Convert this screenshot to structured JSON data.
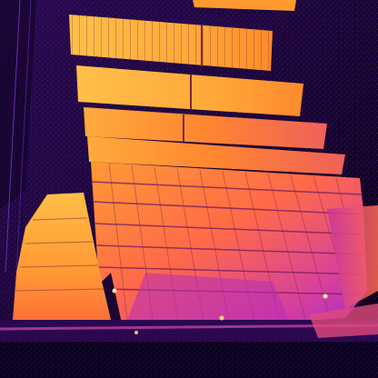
{
  "image": {
    "subject": "thermal-infrared-solar-panel-array",
    "palette": {
      "background": "#0a0010",
      "ground_dark": "#1a0636",
      "ground_mid": "#3a0f6e",
      "panel_hot": "#ffb347",
      "panel_warm": "#ff8a2a",
      "panel_mid": "#e0489a",
      "panel_cool": "#a52bc8",
      "grid_line": "#5a1a5a"
    }
  }
}
